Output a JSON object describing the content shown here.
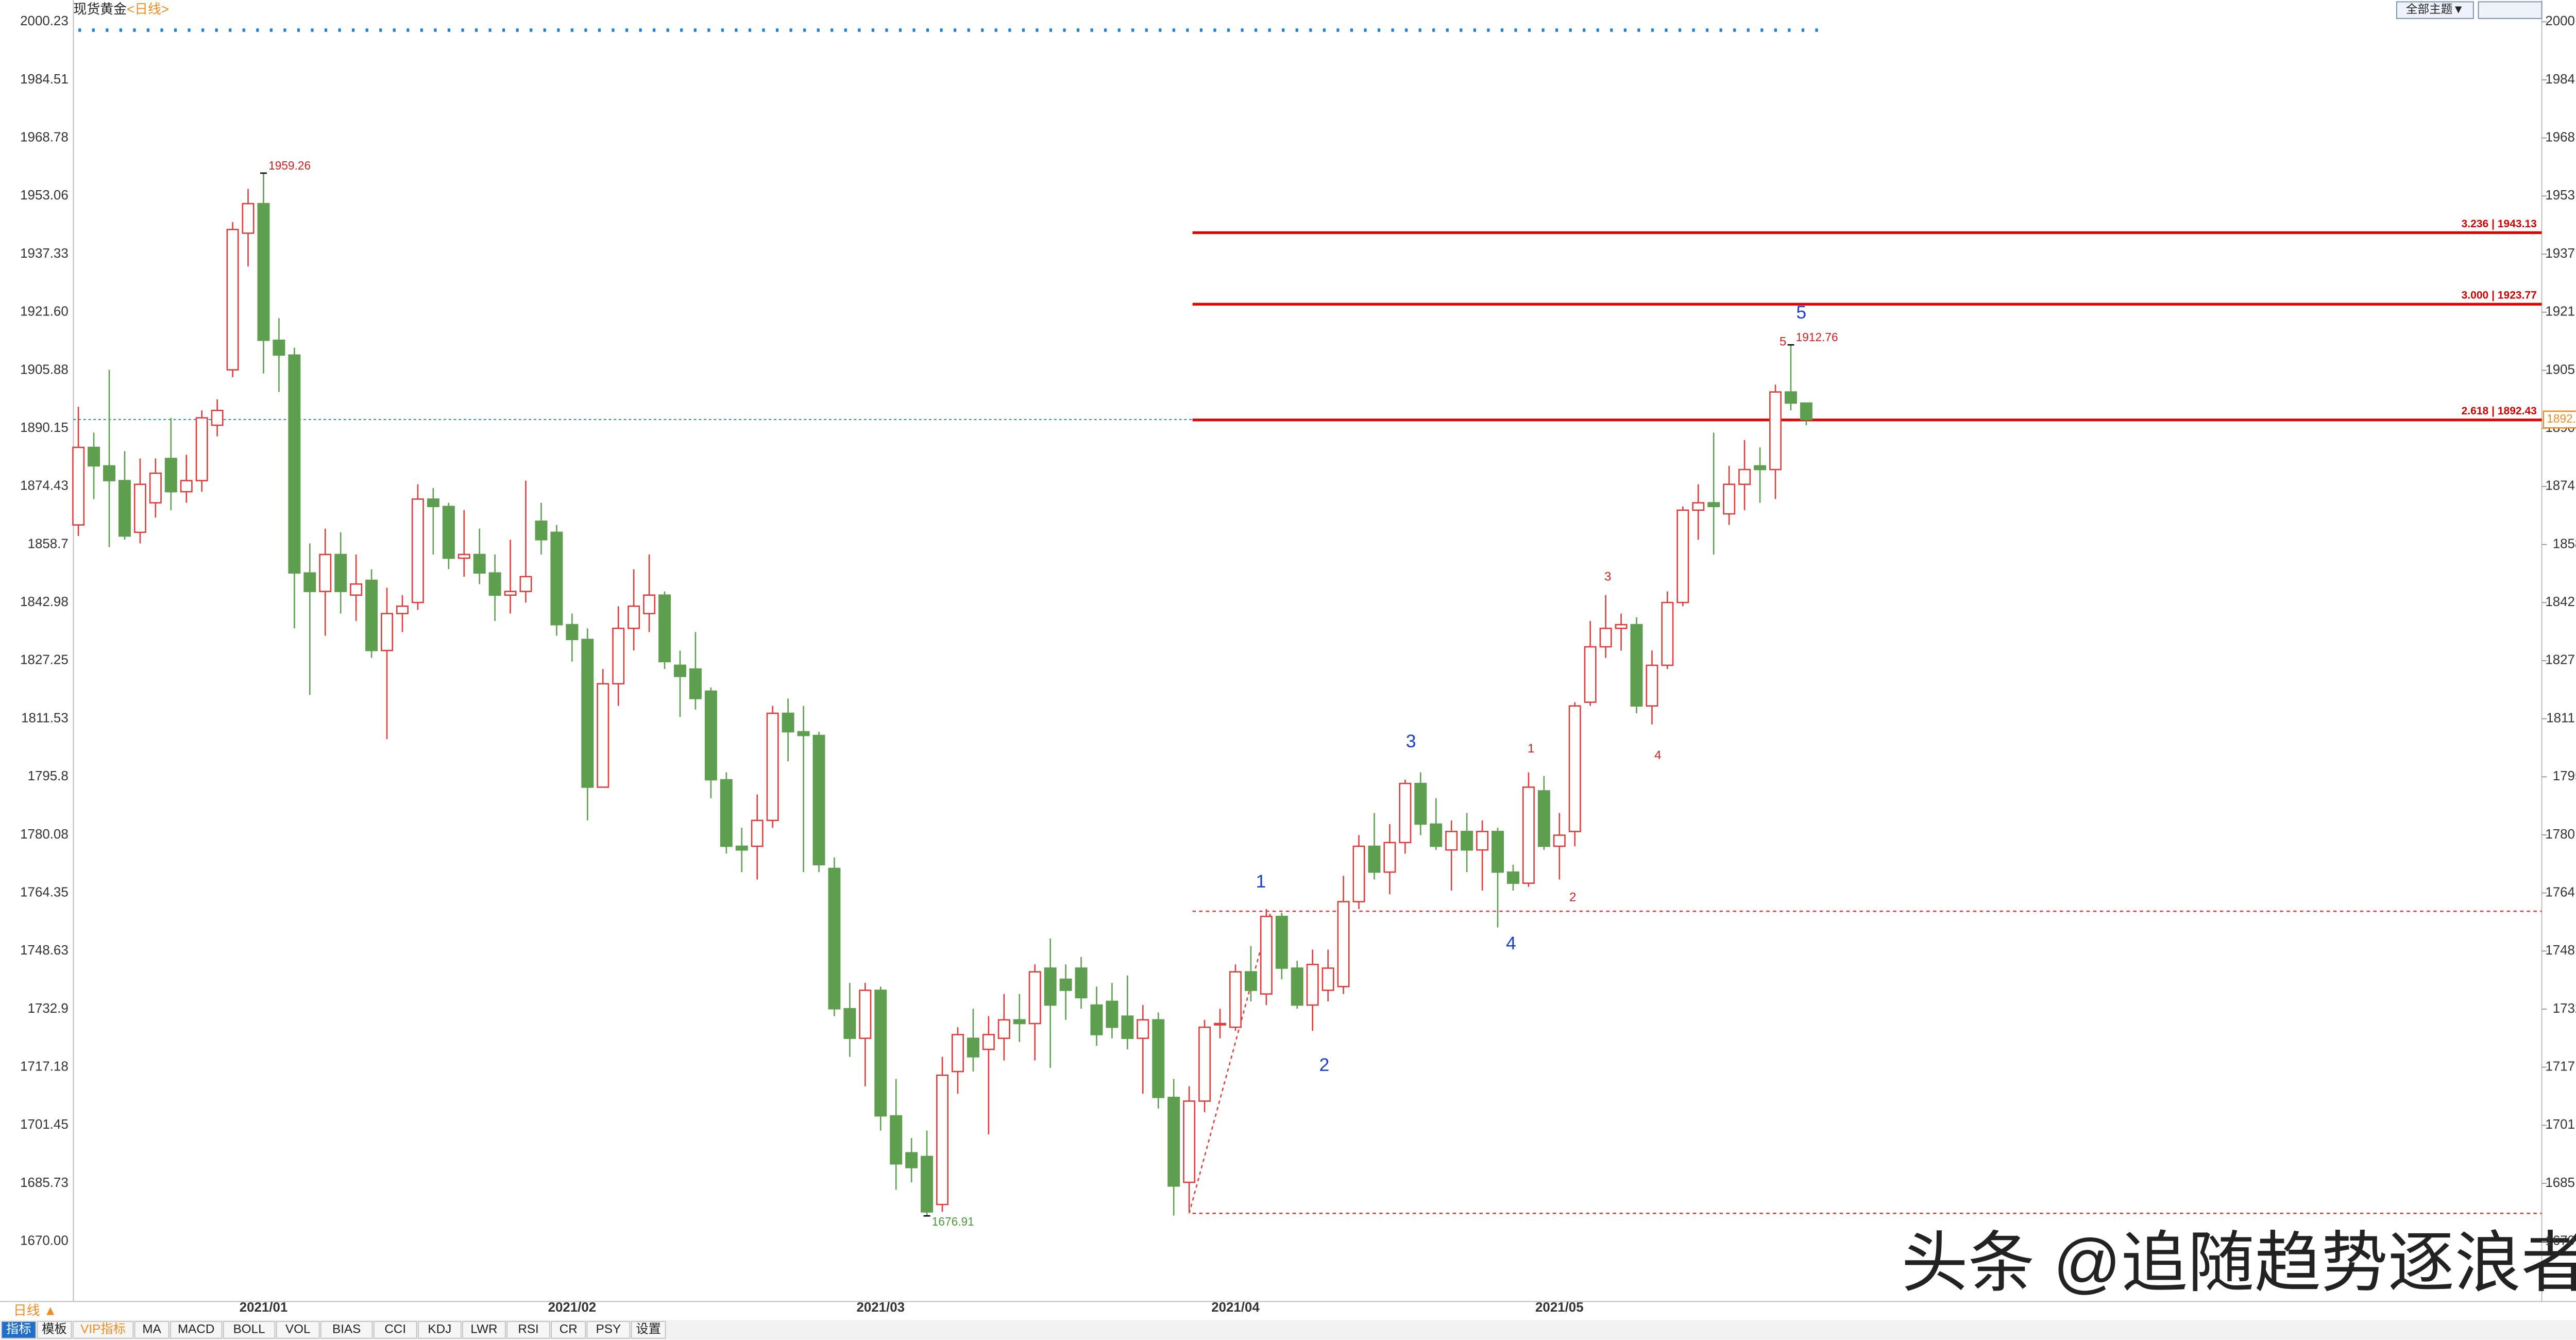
{
  "header": {
    "symbol": "现货黄金",
    "period": "<日线>",
    "theme_button": "全部主题▼"
  },
  "chart_data": {
    "type": "candlestick",
    "categories": [
      null,
      null,
      null,
      null,
      null,
      null,
      null,
      null,
      null,
      null,
      null,
      null,
      "2021/01",
      null,
      null,
      null,
      null,
      null,
      null,
      null,
      null,
      null,
      null,
      null,
      null,
      null,
      null,
      null,
      null,
      null,
      null,
      null,
      "2021/02",
      null,
      null,
      null,
      null,
      null,
      null,
      null,
      null,
      null,
      null,
      null,
      null,
      null,
      null,
      null,
      null,
      null,
      null,
      null,
      "2021/03",
      null,
      null,
      null,
      null,
      null,
      null,
      null,
      null,
      null,
      null,
      null,
      null,
      null,
      null,
      null,
      null,
      null,
      null,
      null,
      null,
      null,
      null,
      "2021/04",
      null,
      null,
      null,
      null,
      null,
      null,
      null,
      null,
      null,
      null,
      null,
      null,
      null,
      null,
      null,
      null,
      null,
      null,
      null,
      null,
      "2021/05",
      null,
      null,
      null,
      null,
      null,
      null,
      null,
      null,
      null,
      null,
      null,
      null,
      null,
      null,
      null,
      null
    ],
    "open": [
      1864,
      1885,
      1880,
      1876,
      1862,
      1870,
      1882,
      1873,
      1876,
      1891,
      1906,
      1943,
      1951,
      1914,
      1910,
      1851,
      1846,
      1856,
      1845,
      1849,
      1830,
      1840,
      1843,
      1871,
      1869,
      1855,
      1856,
      1851,
      1845,
      1846,
      1865,
      1862,
      1837,
      1833,
      1793,
      1821,
      1836,
      1840,
      1845,
      1826,
      1825,
      1819,
      1795,
      1777,
      1777,
      1784,
      1813,
      1808,
      1807,
      1771,
      1733,
      1725,
      1738,
      1704,
      1694,
      1693,
      1680,
      1716,
      1725,
      1722,
      1725,
      1730,
      1729,
      1744,
      1741,
      1744,
      1734,
      1735,
      1731,
      1725,
      1730,
      1709,
      1686,
      1708,
      1729,
      1728,
      1743,
      1737,
      1758,
      1744,
      1734,
      1738,
      1739,
      1762,
      1777,
      1770,
      1778,
      1794,
      1783,
      1776,
      1781,
      1776,
      1781,
      1770,
      1767,
      1792,
      1777,
      1781,
      1816,
      1831,
      1836,
      1837,
      1815,
      1826,
      1843,
      1868,
      1870,
      1867,
      1875,
      1880,
      1879,
      1900,
      1897
    ],
    "high": [
      1896,
      1889,
      1906,
      1884,
      1882,
      1882,
      1893,
      1883,
      1895,
      1898,
      1946,
      1955,
      1959.26,
      1920,
      1912,
      1859,
      1863,
      1862,
      1856,
      1852,
      1847,
      1845,
      1875,
      1874,
      1870,
      1868,
      1863,
      1856,
      1860,
      1876,
      1870,
      1864,
      1840,
      1836,
      1825,
      1842,
      1852,
      1856,
      1846,
      1830,
      1835,
      1820,
      1797,
      1782,
      1791,
      1815,
      1817,
      1815,
      1808,
      1774,
      1740,
      1740,
      1739,
      1714,
      1698,
      1700,
      1720,
      1728,
      1733,
      1731,
      1737,
      1737,
      1745,
      1752,
      1745,
      1747,
      1739,
      1740,
      1742,
      1734,
      1732,
      1714,
      1712,
      1730,
      1733,
      1745,
      1750,
      1760,
      1759,
      1746,
      1749,
      1749,
      1769,
      1780,
      1786,
      1783,
      1795,
      1797,
      1790,
      1784,
      1786,
      1784,
      1782,
      1772,
      1797,
      1796,
      1786,
      1816,
      1838,
      1845,
      1840,
      1839,
      1830,
      1846,
      1869,
      1875,
      1889,
      1880,
      1887,
      1885,
      1902,
      1912.76,
      1897
    ],
    "low": [
      1861,
      1871,
      1858,
      1860,
      1859,
      1866,
      1868,
      1870,
      1873,
      1888,
      1904,
      1934,
      1905,
      1900,
      1836,
      1818,
      1834,
      1840,
      1838,
      1828,
      1806,
      1835,
      1841,
      1856,
      1852,
      1850,
      1848,
      1838,
      1840,
      1843,
      1856,
      1834,
      1827,
      1784,
      1793,
      1815,
      1830,
      1835,
      1825,
      1812,
      1814,
      1790,
      1775,
      1770,
      1768,
      1782,
      1800,
      1770,
      1770,
      1731,
      1720,
      1712,
      1700,
      1684,
      1686,
      1676.91,
      1678,
      1710,
      1716,
      1699,
      1719,
      1724,
      1719,
      1717,
      1730,
      1733,
      1723,
      1725,
      1722,
      1710,
      1706,
      1677,
      1678,
      1705,
      1725,
      1727,
      1735,
      1734,
      1741,
      1733,
      1727,
      1735,
      1737,
      1760,
      1768,
      1764,
      1775,
      1780,
      1776,
      1765,
      1770,
      1765,
      1755,
      1765,
      1766,
      1776,
      1768,
      1777,
      1815,
      1828,
      1830,
      1813,
      1810,
      1825,
      1842,
      1860,
      1856,
      1864,
      1868,
      1870,
      1871,
      1895,
      1891
    ],
    "close": [
      1885,
      1880,
      1876,
      1861,
      1875,
      1878,
      1873,
      1876,
      1893,
      1895,
      1944,
      1951,
      1914,
      1910,
      1851,
      1846,
      1856,
      1846,
      1848,
      1830,
      1840,
      1842,
      1871,
      1869,
      1855,
      1856,
      1851,
      1845,
      1846,
      1850,
      1860,
      1837,
      1833,
      1793,
      1821,
      1836,
      1842,
      1845,
      1827,
      1823,
      1817,
      1795,
      1777,
      1776,
      1784,
      1813,
      1808,
      1807,
      1772,
      1733,
      1725,
      1738,
      1704,
      1691,
      1690,
      1678,
      1715,
      1726,
      1720,
      1726,
      1730,
      1729,
      1743,
      1734,
      1738,
      1736,
      1726,
      1728,
      1725,
      1730,
      1709,
      1685,
      1708,
      1728,
      1729,
      1743,
      1738,
      1758,
      1744,
      1734,
      1745,
      1744,
      1762,
      1777,
      1770,
      1778,
      1794,
      1783,
      1777,
      1781,
      1776,
      1781,
      1770,
      1767,
      1793,
      1777,
      1780,
      1815,
      1831,
      1836,
      1837,
      1815,
      1826,
      1843,
      1868,
      1870,
      1869,
      1875,
      1879,
      1879,
      1900,
      1897,
      1892.54
    ],
    "up_color": "#e03b3b",
    "down_color": "#5e9e4f",
    "ylim": [
      1670,
      2000.23
    ],
    "yticks": [
      2000.23,
      1984.51,
      1968.78,
      1953.06,
      1937.33,
      {
        "value": 1921.6,
        "label": "1921.60"
      },
      1905.88,
      1890.15,
      1874.43,
      1858.7,
      1842.98,
      1827.25,
      1811.53,
      1795.8,
      1780.08,
      1764.35,
      1748.63,
      1732.9,
      1717.18,
      1701.45,
      1685.73,
      {
        "value": 1670,
        "label": "1670.00"
      }
    ],
    "extreme_labels": [
      1959.26,
      1676.91,
      1912.76
    ],
    "fib_levels": [
      {
        "value": 1943.13,
        "label": "3.236 | 1943.13"
      },
      {
        "value": 1923.77,
        "label": "3.000 | 1923.77"
      },
      {
        "value": 1892.43,
        "label": "2.618 | 1892.43"
      }
    ],
    "dotted_levels": [
      1759.4,
      1677.6
    ],
    "wave_labels": [
      "1",
      "2",
      "3",
      "4",
      "5"
    ],
    "sub_wave_labels": [
      "1",
      "2",
      "3",
      "4",
      "5"
    ]
  },
  "footer": {
    "period": "日线 ▲",
    "tabs": [
      "指标",
      "模板",
      "VIP指标",
      "MA",
      "MACD",
      "BOLL",
      "VOL",
      "BIAS",
      "CCI",
      "KDJ",
      "LWR",
      "RSI",
      "CR",
      "PSY",
      "设置"
    ]
  },
  "watermark": "头条 @追随趋势逐浪者"
}
